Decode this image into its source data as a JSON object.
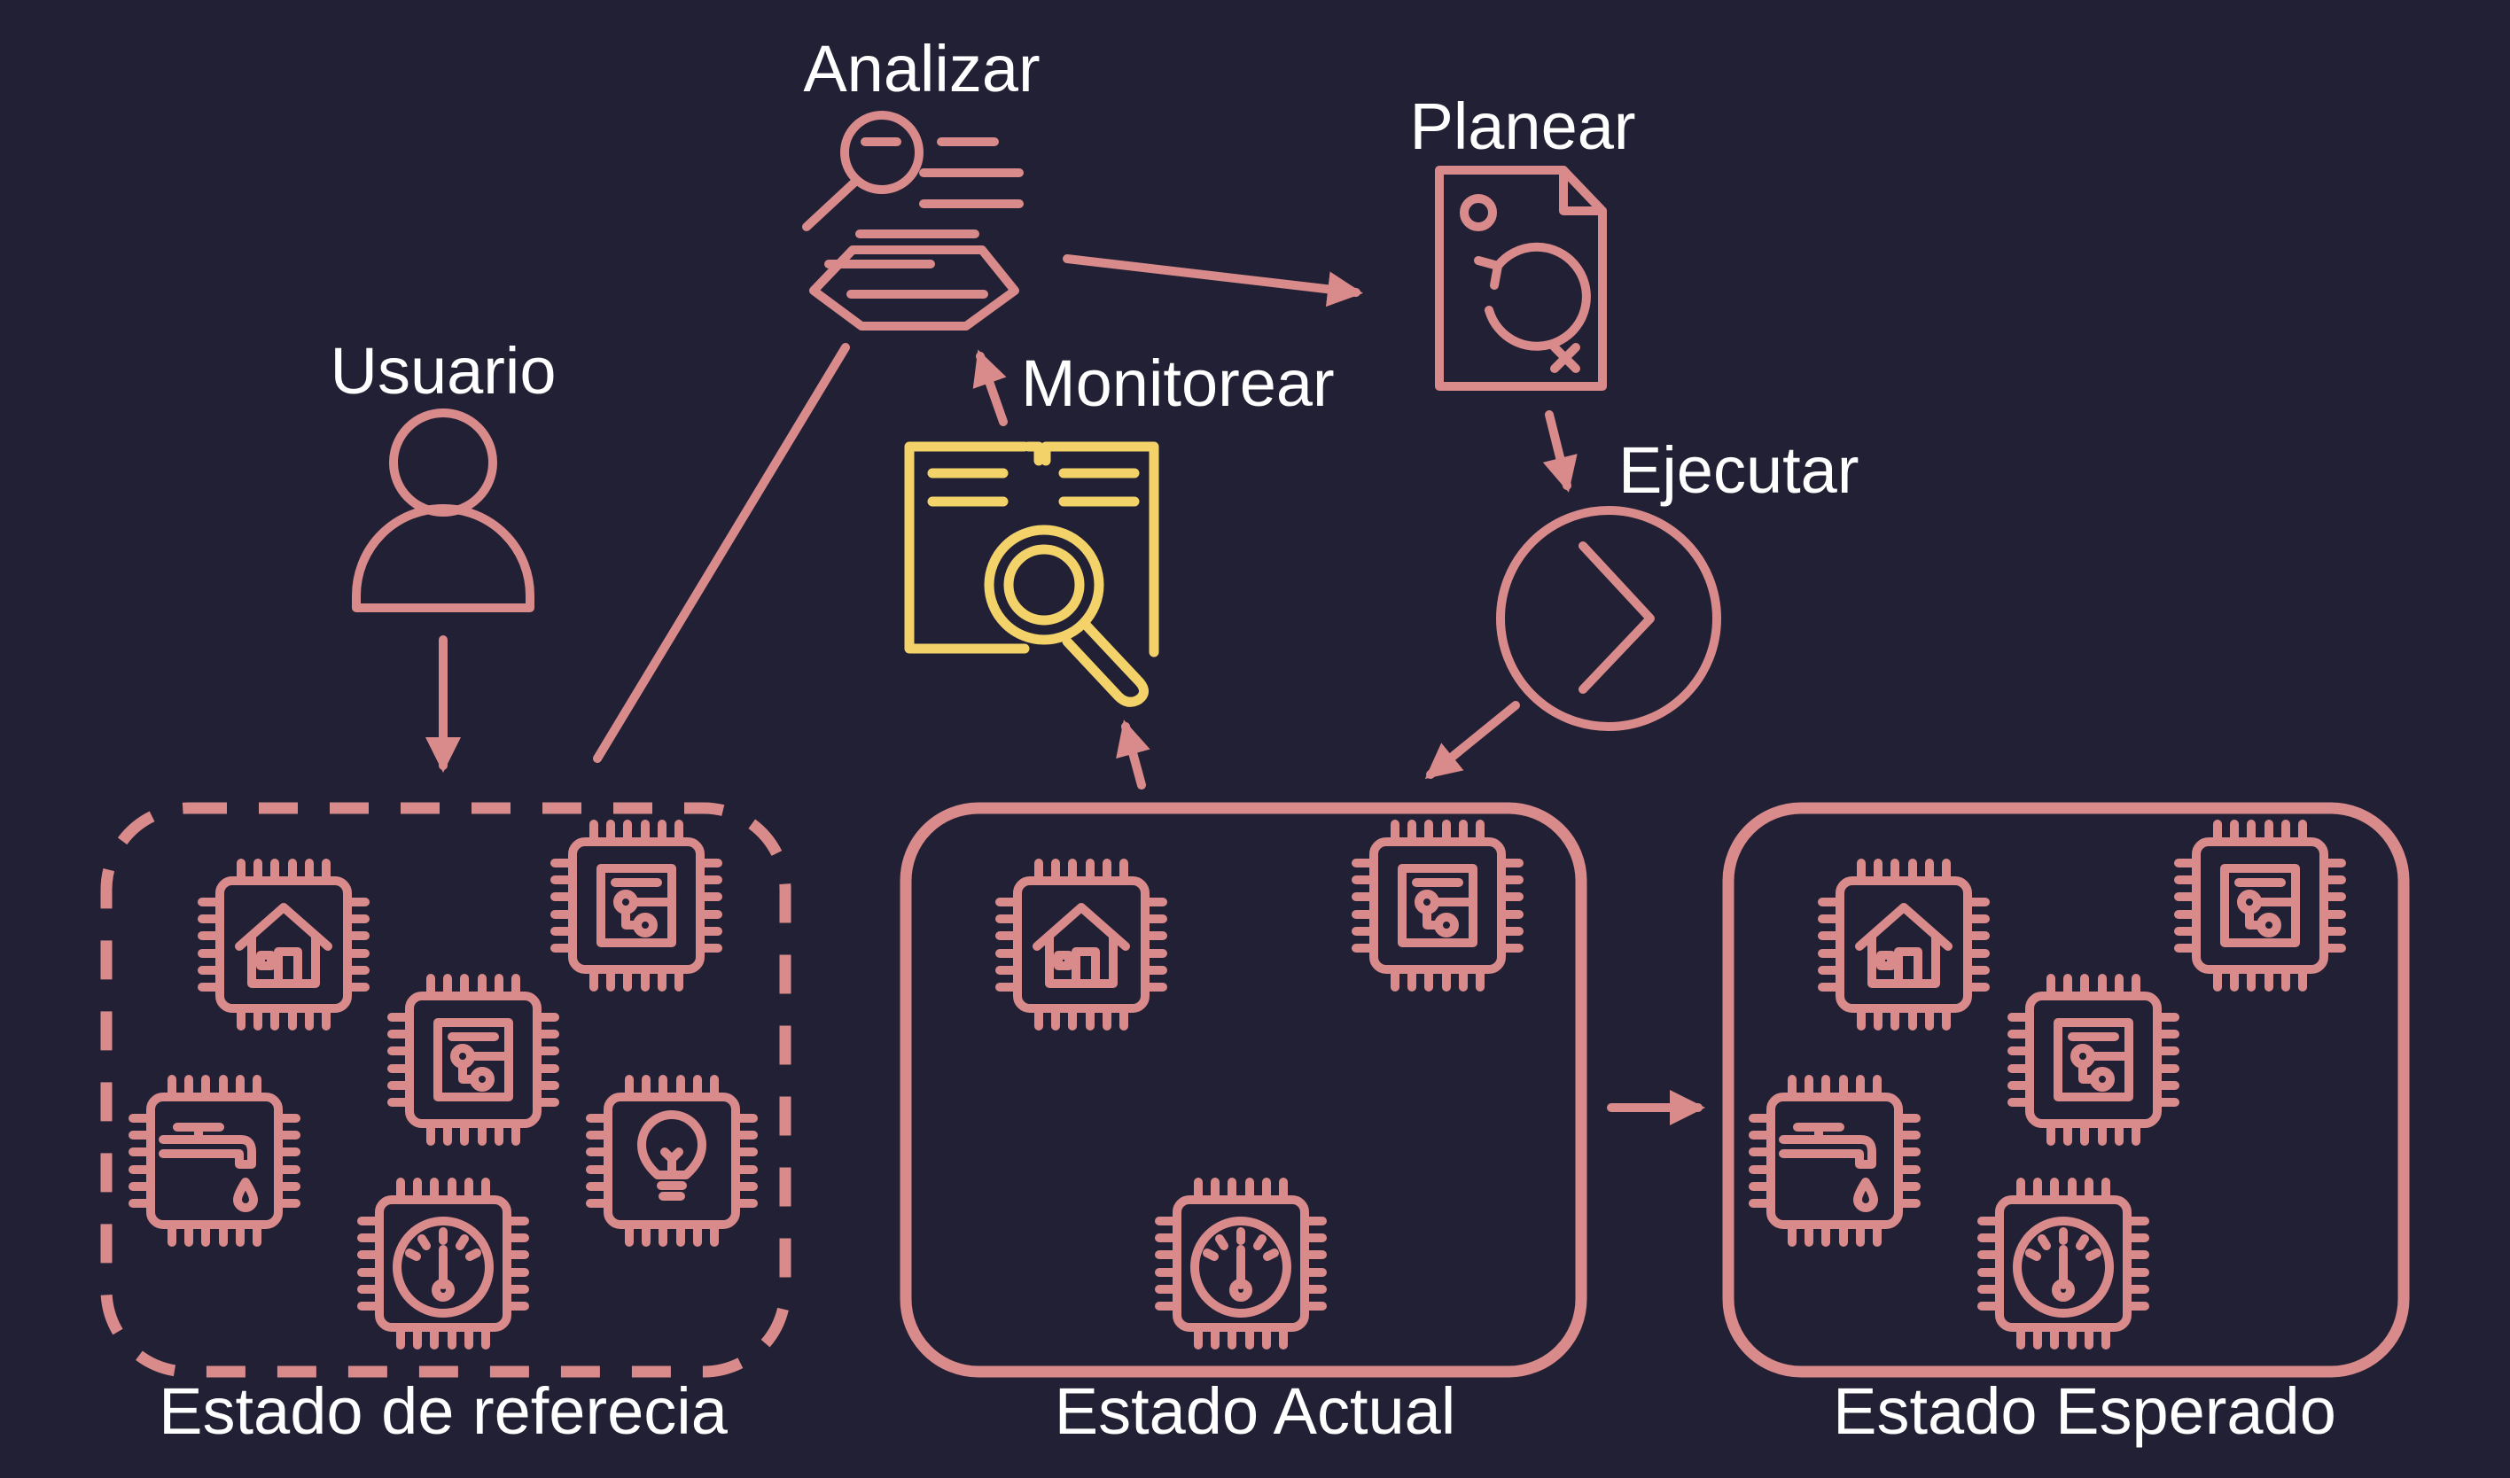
{
  "labels": {
    "analizar": "Analizar",
    "planear": "Planear",
    "usuario": "Usuario",
    "monitorear": "Monitorear",
    "ejecutar": "Ejecutar",
    "estado_referencia": "Estado de referecia",
    "estado_actual": "Estado Actual",
    "estado_esperado": "Estado Esperado"
  },
  "colors": {
    "background": "#222034",
    "accent": "#d98a8a",
    "highlight": "#f4d26a",
    "text": "#ffffff"
  },
  "icons": {
    "analizar": "analysis-magnifier-icon",
    "planear": "plan-document-icon",
    "usuario": "user-icon",
    "monitorear": "monitor-book-search-icon",
    "ejecutar": "execute-chevron-icon",
    "chips": [
      "chip-house-icon",
      "chip-circuit-icon",
      "chip-faucet-icon",
      "chip-bulb-icon",
      "chip-thermometer-icon"
    ]
  },
  "states": {
    "referencia": [
      "chip-house-icon",
      "chip-circuit-icon",
      "chip-circuit-icon",
      "chip-faucet-icon",
      "chip-bulb-icon",
      "chip-thermometer-icon"
    ],
    "actual": [
      "chip-house-icon",
      "chip-circuit-icon",
      "chip-thermometer-icon"
    ],
    "esperado": [
      "chip-house-icon",
      "chip-circuit-icon",
      "chip-circuit-icon",
      "chip-faucet-icon",
      "chip-thermometer-icon"
    ]
  }
}
